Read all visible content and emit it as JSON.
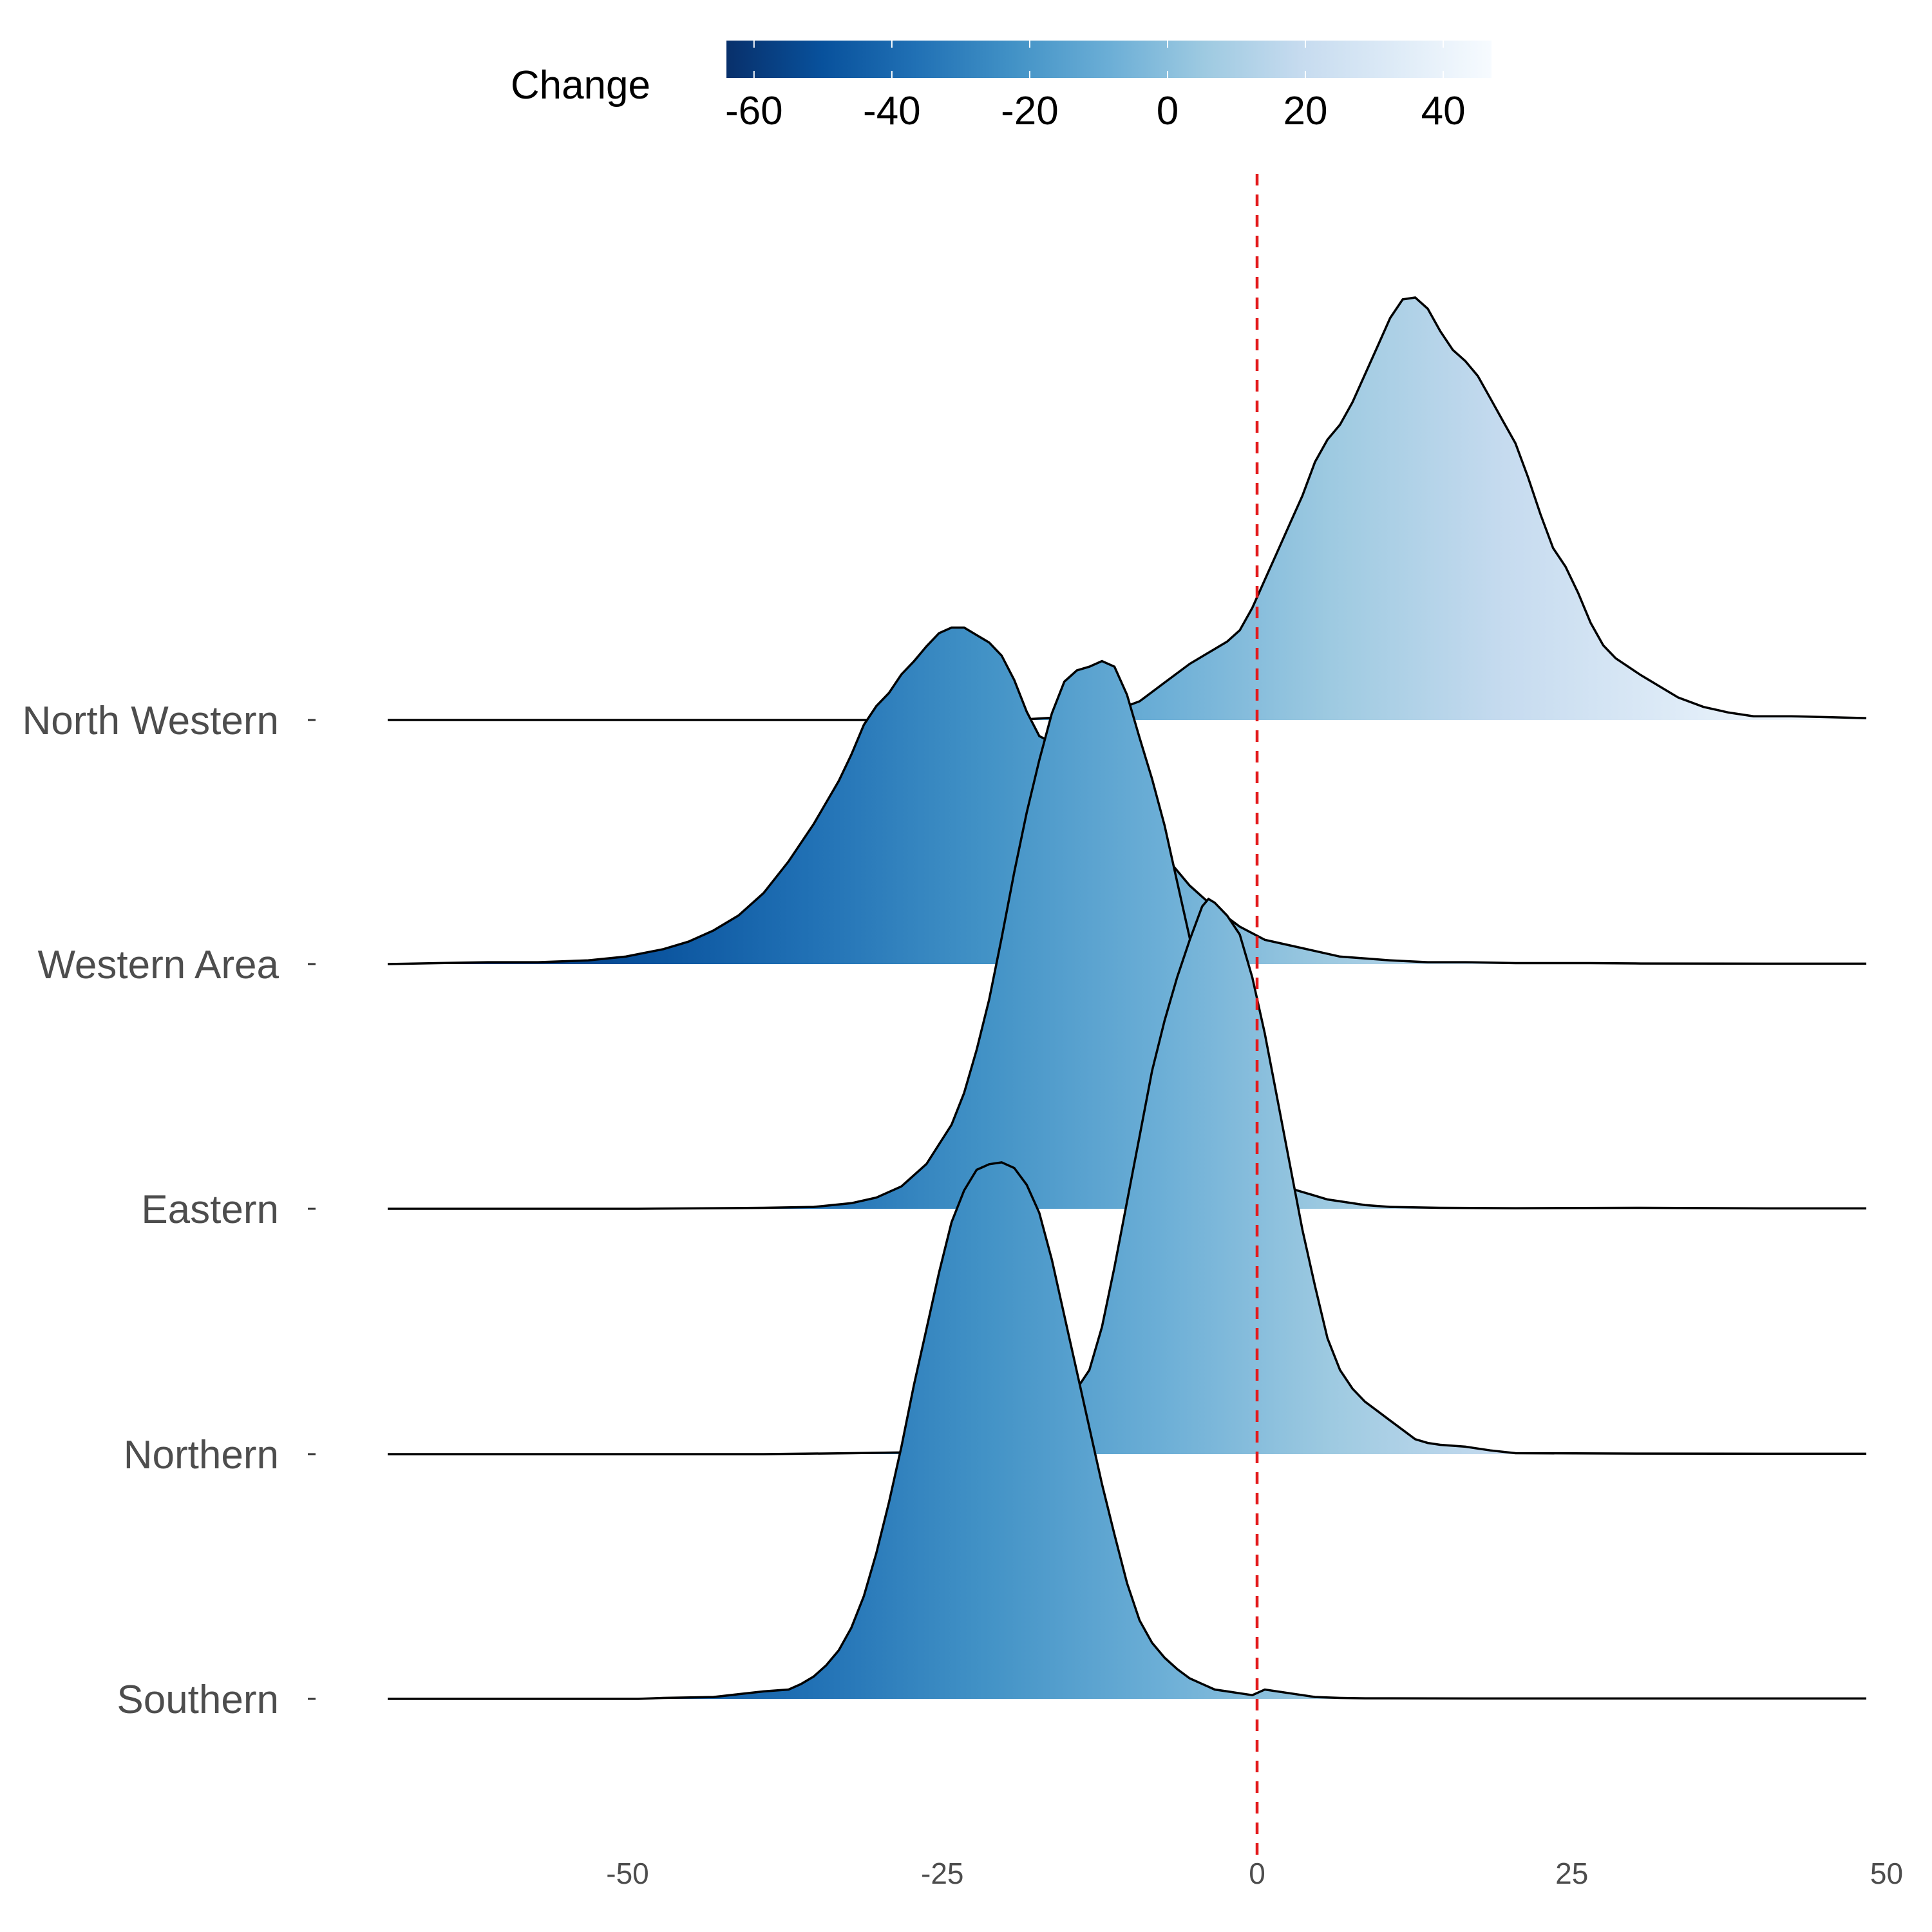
{
  "chart_data": {
    "type": "ridgeline",
    "xlim": [
      -70,
      48
    ],
    "x_ticks": [
      -50,
      -25,
      0,
      25,
      50
    ],
    "x_tick_labels": [
      "-50",
      "-25",
      "0",
      "25",
      "50"
    ],
    "reference_line": {
      "x": 0,
      "color": "#e31a1c",
      "style": "dashed"
    },
    "fill_scale": {
      "title": "Change",
      "range": [
        -64,
        47
      ],
      "ticks": [
        -60,
        -40,
        -20,
        0,
        20,
        40
      ],
      "tick_labels": [
        "-60",
        "-40",
        "-20",
        "0",
        "20",
        "40"
      ],
      "colors": [
        "#08306b",
        "#08519c",
        "#2171b5",
        "#4292c6",
        "#6baed6",
        "#9ecae1",
        "#c6dbef",
        "#deebf7",
        "#f7fbff"
      ]
    },
    "series": [
      {
        "name": "North Western",
        "peak_height": 2.28,
        "points": [
          [
            -70,
            0
          ],
          [
            -40,
            0
          ],
          [
            -20,
            0
          ],
          [
            -15,
            0.02
          ],
          [
            -12,
            0.05
          ],
          [
            -10,
            0.1
          ],
          [
            -8,
            0.2
          ],
          [
            -6,
            0.3
          ],
          [
            -4,
            0.38
          ],
          [
            -3,
            0.42
          ],
          [
            -2,
            0.48
          ],
          [
            -1,
            0.6
          ],
          [
            0,
            0.75
          ],
          [
            1,
            0.9
          ],
          [
            2,
            1.05
          ],
          [
            3,
            1.2
          ],
          [
            4,
            1.38
          ],
          [
            5,
            1.5
          ],
          [
            6,
            1.58
          ],
          [
            7,
            1.7
          ],
          [
            8,
            1.85
          ],
          [
            9,
            2.0
          ],
          [
            10,
            2.15
          ],
          [
            11,
            2.25
          ],
          [
            12,
            2.26
          ],
          [
            13,
            2.2
          ],
          [
            14,
            2.08
          ],
          [
            15,
            1.98
          ],
          [
            16,
            1.92
          ],
          [
            17,
            1.84
          ],
          [
            18,
            1.72
          ],
          [
            19,
            1.6
          ],
          [
            20,
            1.48
          ],
          [
            21,
            1.3
          ],
          [
            22,
            1.1
          ],
          [
            23,
            0.92
          ],
          [
            24,
            0.82
          ],
          [
            25,
            0.68
          ],
          [
            26,
            0.52
          ],
          [
            27,
            0.4
          ],
          [
            28,
            0.33
          ],
          [
            30,
            0.24
          ],
          [
            32,
            0.16
          ],
          [
            33,
            0.12
          ],
          [
            35,
            0.07
          ],
          [
            37,
            0.04
          ],
          [
            39,
            0.02
          ],
          [
            42,
            0.02
          ],
          [
            45,
            0.015
          ],
          [
            48,
            0.01
          ]
        ]
      },
      {
        "name": "Western Area",
        "peak_height": 1.85,
        "points": [
          [
            -70,
            0
          ],
          [
            -66,
            0.005
          ],
          [
            -62,
            0.01
          ],
          [
            -58,
            0.01
          ],
          [
            -54,
            0.02
          ],
          [
            -51,
            0.04
          ],
          [
            -48,
            0.08
          ],
          [
            -46,
            0.12
          ],
          [
            -44,
            0.18
          ],
          [
            -42,
            0.26
          ],
          [
            -40,
            0.38
          ],
          [
            -38,
            0.55
          ],
          [
            -36,
            0.75
          ],
          [
            -34,
            0.98
          ],
          [
            -33,
            1.12
          ],
          [
            -32,
            1.28
          ],
          [
            -31,
            1.38
          ],
          [
            -30,
            1.45
          ],
          [
            -29,
            1.55
          ],
          [
            -28,
            1.62
          ],
          [
            -27,
            1.7
          ],
          [
            -26,
            1.77
          ],
          [
            -25,
            1.8
          ],
          [
            -24,
            1.8
          ],
          [
            -23,
            1.76
          ],
          [
            -22,
            1.72
          ],
          [
            -21,
            1.65
          ],
          [
            -20,
            1.52
          ],
          [
            -19,
            1.35
          ],
          [
            -18,
            1.22
          ],
          [
            -16,
            1.15
          ],
          [
            -14,
            1.05
          ],
          [
            -12,
            0.92
          ],
          [
            -10,
            0.75
          ],
          [
            -8,
            0.58
          ],
          [
            -6,
            0.42
          ],
          [
            -4,
            0.3
          ],
          [
            -2,
            0.2
          ],
          [
            0,
            0.13
          ],
          [
            2,
            0.1
          ],
          [
            4,
            0.07
          ],
          [
            6,
            0.04
          ],
          [
            8,
            0.03
          ],
          [
            10,
            0.02
          ],
          [
            13,
            0.01
          ],
          [
            16,
            0.01
          ],
          [
            20,
            0.005
          ],
          [
            26,
            0.005
          ],
          [
            30,
            0.003
          ],
          [
            40,
            0.002
          ],
          [
            48,
            0.002
          ]
        ]
      },
      {
        "name": "Eastern",
        "peak_height": 2.95,
        "points": [
          [
            -70,
            0
          ],
          [
            -50,
            0
          ],
          [
            -40,
            0.005
          ],
          [
            -36,
            0.01
          ],
          [
            -33,
            0.03
          ],
          [
            -31,
            0.06
          ],
          [
            -29,
            0.12
          ],
          [
            -27,
            0.24
          ],
          [
            -25,
            0.45
          ],
          [
            -24,
            0.62
          ],
          [
            -23,
            0.85
          ],
          [
            -22,
            1.12
          ],
          [
            -21,
            1.45
          ],
          [
            -20,
            1.8
          ],
          [
            -19,
            2.12
          ],
          [
            -18,
            2.4
          ],
          [
            -17,
            2.65
          ],
          [
            -16,
            2.82
          ],
          [
            -15,
            2.88
          ],
          [
            -14,
            2.9
          ],
          [
            -13,
            2.93
          ],
          [
            -12,
            2.9
          ],
          [
            -11,
            2.75
          ],
          [
            -10,
            2.52
          ],
          [
            -9,
            2.3
          ],
          [
            -8,
            2.05
          ],
          [
            -7,
            1.75
          ],
          [
            -6,
            1.45
          ],
          [
            -5,
            1.15
          ],
          [
            -4,
            0.88
          ],
          [
            -3,
            0.65
          ],
          [
            -2,
            0.46
          ],
          [
            -1,
            0.3
          ],
          [
            0,
            0.2
          ],
          [
            1,
            0.14
          ],
          [
            2,
            0.11
          ],
          [
            3,
            0.09
          ],
          [
            4,
            0.07
          ],
          [
            5,
            0.05
          ],
          [
            6,
            0.04
          ],
          [
            8,
            0.02
          ],
          [
            10,
            0.01
          ],
          [
            14,
            0.005
          ],
          [
            20,
            0.003
          ],
          [
            30,
            0.005
          ],
          [
            40,
            0.002
          ],
          [
            48,
            0.002
          ]
        ]
      },
      {
        "name": "Northern",
        "peak_height": 2.98,
        "points": [
          [
            -70,
            0
          ],
          [
            -40,
            0
          ],
          [
            -33,
            0.005
          ],
          [
            -28,
            0.01
          ],
          [
            -24,
            0.02
          ],
          [
            -22,
            0.04
          ],
          [
            -20,
            0.08
          ],
          [
            -18,
            0.14
          ],
          [
            -16,
            0.25
          ],
          [
            -14,
            0.45
          ],
          [
            -13,
            0.68
          ],
          [
            -12,
            1.0
          ],
          [
            -11,
            1.35
          ],
          [
            -10,
            1.7
          ],
          [
            -9,
            2.05
          ],
          [
            -8,
            2.32
          ],
          [
            -7,
            2.55
          ],
          [
            -6,
            2.75
          ],
          [
            -5,
            2.93
          ],
          [
            -4.5,
            2.97
          ],
          [
            -4,
            2.95
          ],
          [
            -3,
            2.88
          ],
          [
            -2,
            2.78
          ],
          [
            -1,
            2.55
          ],
          [
            0,
            2.25
          ],
          [
            1,
            1.9
          ],
          [
            2,
            1.55
          ],
          [
            3,
            1.2
          ],
          [
            4,
            0.9
          ],
          [
            5,
            0.62
          ],
          [
            6,
            0.45
          ],
          [
            7,
            0.35
          ],
          [
            8,
            0.28
          ],
          [
            9,
            0.23
          ],
          [
            10,
            0.18
          ],
          [
            11,
            0.13
          ],
          [
            12,
            0.08
          ],
          [
            13,
            0.06
          ],
          [
            14,
            0.05
          ],
          [
            16,
            0.04
          ],
          [
            18,
            0.02
          ],
          [
            20,
            0.005
          ],
          [
            30,
            0.003
          ],
          [
            40,
            0.002
          ],
          [
            48,
            0.002
          ]
        ]
      },
      {
        "name": "Southern",
        "peak_height": 2.88,
        "points": [
          [
            -70,
            0
          ],
          [
            -50,
            0
          ],
          [
            -48,
            0.005
          ],
          [
            -44,
            0.01
          ],
          [
            -40,
            0.04
          ],
          [
            -38,
            0.05
          ],
          [
            -37,
            0.08
          ],
          [
            -36,
            0.12
          ],
          [
            -35,
            0.18
          ],
          [
            -34,
            0.26
          ],
          [
            -33,
            0.38
          ],
          [
            -32,
            0.55
          ],
          [
            -31,
            0.78
          ],
          [
            -30,
            1.05
          ],
          [
            -29,
            1.35
          ],
          [
            -28,
            1.68
          ],
          [
            -27,
            1.98
          ],
          [
            -26,
            2.28
          ],
          [
            -25,
            2.55
          ],
          [
            -24,
            2.72
          ],
          [
            -23,
            2.83
          ],
          [
            -22,
            2.86
          ],
          [
            -21,
            2.87
          ],
          [
            -20,
            2.84
          ],
          [
            -19,
            2.75
          ],
          [
            -18,
            2.6
          ],
          [
            -17,
            2.35
          ],
          [
            -16,
            2.05
          ],
          [
            -15,
            1.75
          ],
          [
            -14,
            1.45
          ],
          [
            -13,
            1.15
          ],
          [
            -12,
            0.88
          ],
          [
            -11,
            0.62
          ],
          [
            -10,
            0.42
          ],
          [
            -9,
            0.3
          ],
          [
            -8,
            0.22
          ],
          [
            -7,
            0.16
          ],
          [
            -6,
            0.11
          ],
          [
            -5,
            0.08
          ],
          [
            -4,
            0.05
          ],
          [
            -3,
            0.04
          ],
          [
            -2,
            0.03
          ],
          [
            -1,
            0.02
          ],
          [
            0,
            0.05
          ],
          [
            2,
            0.03
          ],
          [
            4,
            0.01
          ],
          [
            6,
            0.005
          ],
          [
            8,
            0.003
          ],
          [
            20,
            0.002
          ],
          [
            48,
            0.002
          ]
        ]
      }
    ]
  }
}
